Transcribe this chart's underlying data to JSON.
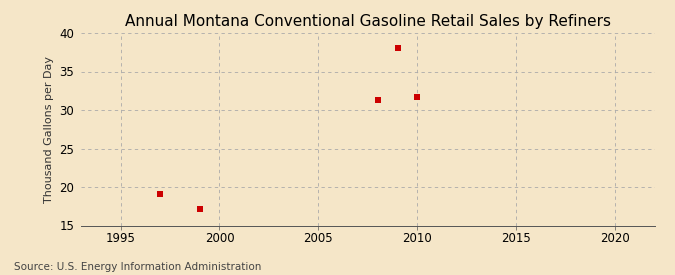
{
  "title": "Annual Montana Conventional Gasoline Retail Sales by Refiners",
  "ylabel": "Thousand Gallons per Day",
  "source": "Source: U.S. Energy Information Administration",
  "background_color": "#f5e6c8",
  "plot_background_color": "#f5e6c8",
  "x_data": [
    1997,
    1999,
    2008,
    2009,
    2010
  ],
  "y_data": [
    19.1,
    17.1,
    31.3,
    38.1,
    31.7
  ],
  "marker_color": "#cc0000",
  "marker": "s",
  "marker_size": 4,
  "xlim": [
    1993,
    2022
  ],
  "ylim": [
    15,
    40
  ],
  "xticks": [
    1995,
    2000,
    2005,
    2010,
    2015,
    2020
  ],
  "yticks": [
    15,
    20,
    25,
    30,
    35,
    40
  ],
  "grid_color": "#aaaaaa",
  "grid_style": "--",
  "title_fontsize": 11,
  "label_fontsize": 8,
  "tick_fontsize": 8.5,
  "source_fontsize": 7.5
}
